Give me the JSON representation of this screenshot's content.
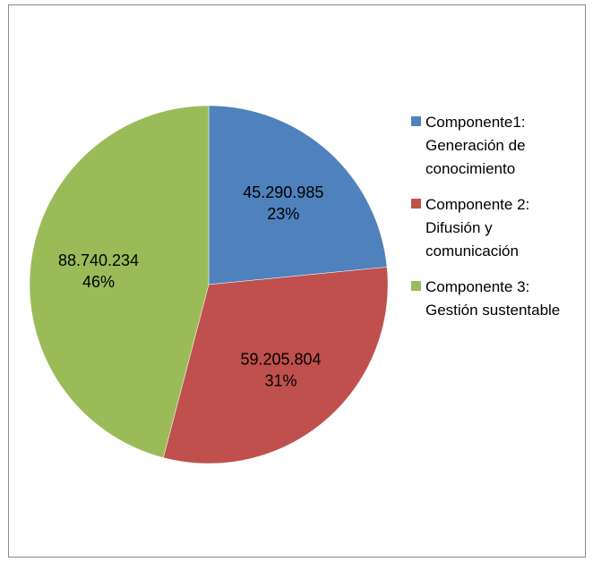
{
  "chart_data": {
    "type": "pie",
    "title": "",
    "categories": [
      "Componente1: Generación de conocimiento",
      "Componente 2: Difusión y comunicación",
      "Componente 3: Gestión sustentable"
    ],
    "values": [
      45290985,
      59205804,
      88740234
    ],
    "value_labels": [
      "45.290.985",
      "59.205.804",
      "88.740.234"
    ],
    "percent_labels": [
      "23%",
      "31%",
      "46%"
    ],
    "colors": [
      "#4f81bd",
      "#c0504d",
      "#9bbb59"
    ],
    "legend_position": "right"
  },
  "legend": {
    "items": [
      {
        "label": "Componente1:\nGeneración de\nconocimiento",
        "color": "#4f81bd"
      },
      {
        "label": "Componente 2:\nDifusión y\ncomunicación",
        "color": "#c0504d"
      },
      {
        "label": "Componente 3:\nGestión sustentable",
        "color": "#9bbb59"
      }
    ]
  }
}
